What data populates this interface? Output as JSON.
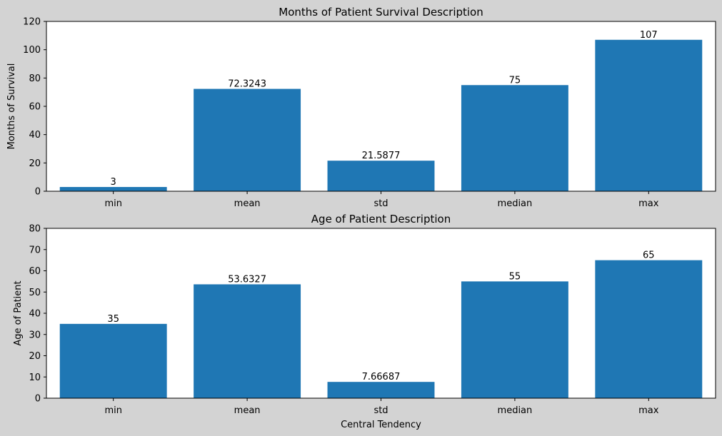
{
  "colors": {
    "figure_bg": "#d3d3d3",
    "axes_bg": "#ffffff",
    "bar": "#1f77b4",
    "text": "#000000"
  },
  "chart_data": [
    {
      "type": "bar",
      "title": "Months of Patient Survival Description",
      "xlabel": "",
      "ylabel": "Months of Survival",
      "categories": [
        "min",
        "mean",
        "std",
        "median",
        "max"
      ],
      "values": [
        3,
        72.3243,
        21.5877,
        75,
        107
      ],
      "value_labels": [
        "3",
        "72.3243",
        "21.5877",
        "75",
        "107"
      ],
      "ylim": [
        0,
        120
      ],
      "yticks": [
        0,
        20,
        40,
        60,
        80,
        100,
        120
      ],
      "grid": false
    },
    {
      "type": "bar",
      "title": "Age of Patient Description",
      "xlabel": "Central Tendency",
      "ylabel": "Age of Patient",
      "categories": [
        "min",
        "mean",
        "std",
        "median",
        "max"
      ],
      "values": [
        35,
        53.6327,
        7.66687,
        55,
        65
      ],
      "value_labels": [
        "35",
        "53.6327",
        "7.66687",
        "55",
        "65"
      ],
      "ylim": [
        0,
        80
      ],
      "yticks": [
        0,
        10,
        20,
        30,
        40,
        50,
        60,
        70,
        80
      ],
      "grid": false
    }
  ]
}
